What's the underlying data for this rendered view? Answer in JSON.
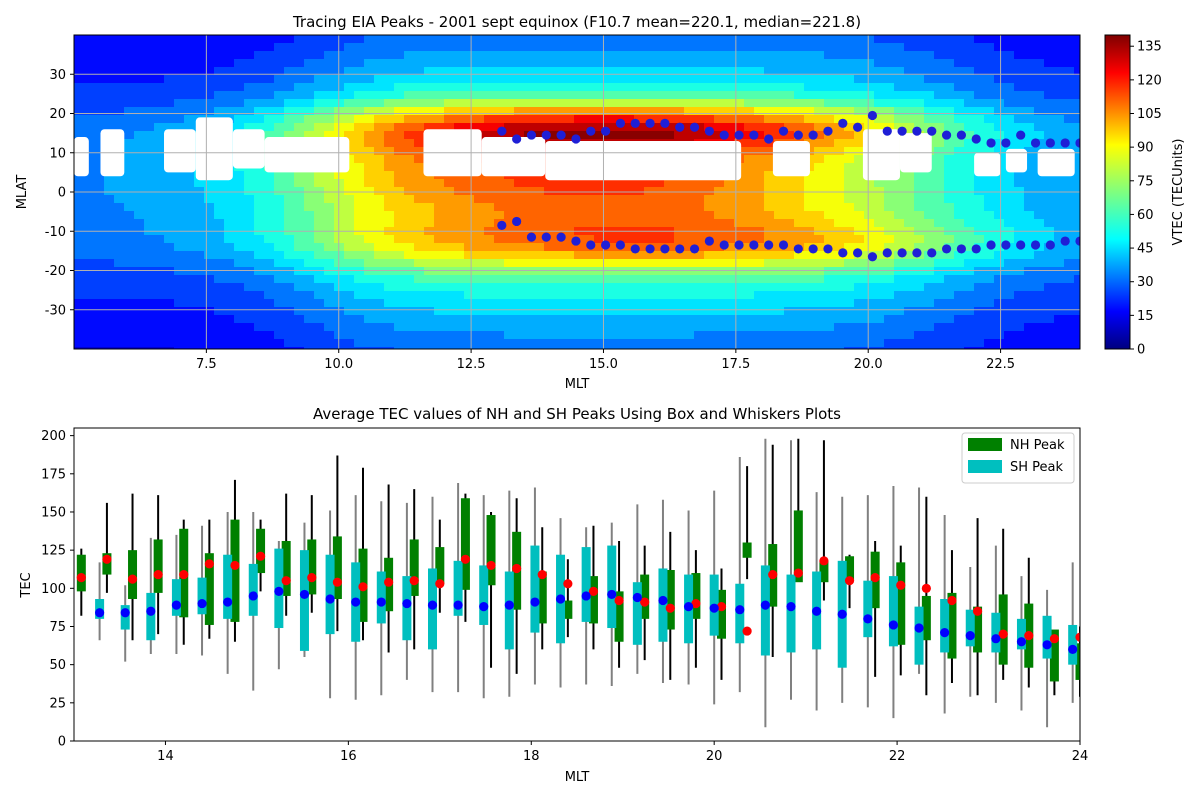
{
  "colors": {
    "nh_box": "#008000",
    "sh_box": "#00bfbf",
    "nh_marker": "#ff0000",
    "sh_marker": "#0000ff",
    "nh_whisker": "#000000",
    "sh_whisker": "#808080",
    "peak_dot": "#1f1fd6",
    "grid": "#b0b0b0"
  },
  "chart_data": [
    {
      "type": "heatmap",
      "title": "Tracing EIA Peaks - 2001 sept equinox (F10.7 mean=220.1, median=221.8)",
      "xlabel": "MLT",
      "ylabel": "MLAT",
      "xlim": [
        5.0,
        24.0
      ],
      "ylim": [
        -40,
        40
      ],
      "xticks": [
        "7.5",
        "10.0",
        "12.5",
        "15.0",
        "17.5",
        "20.0",
        "22.5"
      ],
      "yticks": [
        "30",
        "20",
        "10",
        "0",
        "-10",
        "-20",
        "-30"
      ],
      "grid": true,
      "colormap": "jet",
      "colorbar_label": "VTEC (TECUnits)",
      "colorbar_range": [
        0,
        140
      ],
      "colorbar_ticks": [
        "0",
        "15",
        "30",
        "45",
        "60",
        "75",
        "90",
        "105",
        "120",
        "135"
      ],
      "nh_peaks": {
        "x": [
          13.08,
          13.36,
          13.64,
          13.92,
          14.2,
          14.48,
          14.76,
          15.04,
          15.32,
          15.6,
          15.88,
          16.16,
          16.44,
          16.72,
          17.0,
          17.28,
          17.56,
          17.84,
          18.12,
          18.4,
          18.68,
          18.96,
          19.24,
          19.52,
          19.8,
          20.08,
          20.36,
          20.64,
          20.92,
          21.2,
          21.48,
          21.76,
          22.04,
          22.32,
          22.6,
          22.88,
          23.16,
          23.44,
          23.72,
          24.0
        ],
        "y": [
          15.5,
          13.5,
          14.5,
          14.5,
          14.5,
          13.5,
          15.5,
          15.5,
          17.5,
          17.5,
          17.5,
          17.5,
          16.5,
          16.5,
          15.5,
          14.5,
          14.5,
          14.5,
          13.5,
          15.5,
          14.5,
          14.5,
          15.5,
          17.5,
          16.5,
          19.5,
          15.5,
          15.5,
          15.5,
          15.5,
          14.5,
          14.5,
          13.5,
          12.5,
          12.5,
          14.5,
          12.5,
          12.5,
          12.5,
          12.5
        ]
      },
      "sh_peaks": {
        "x": [
          13.08,
          13.36,
          13.64,
          13.92,
          14.2,
          14.48,
          14.76,
          15.04,
          15.32,
          15.6,
          15.88,
          16.16,
          16.44,
          16.72,
          17.0,
          17.28,
          17.56,
          17.84,
          18.12,
          18.4,
          18.68,
          18.96,
          19.24,
          19.52,
          19.8,
          20.08,
          20.36,
          20.64,
          20.92,
          21.2,
          21.48,
          21.76,
          22.04,
          22.32,
          22.6,
          22.88,
          23.16,
          23.44,
          23.72,
          24.0
        ],
        "y": [
          -8.5,
          -7.5,
          -11.5,
          -11.5,
          -11.5,
          -12.5,
          -13.5,
          -13.5,
          -13.5,
          -14.5,
          -14.5,
          -14.5,
          -14.5,
          -14.5,
          -12.5,
          -13.5,
          -13.5,
          -13.5,
          -13.5,
          -13.5,
          -14.5,
          -14.5,
          -14.5,
          -15.5,
          -15.5,
          -16.5,
          -15.5,
          -15.5,
          -15.5,
          -15.5,
          -14.5,
          -14.5,
          -14.5,
          -13.5,
          -13.5,
          -13.5,
          -13.5,
          -13.5,
          -12.5,
          -12.5
        ]
      }
    },
    {
      "type": "box",
      "title": "Average TEC values of NH and SH Peaks Using Box and Whiskers Plots",
      "xlabel": "MLT",
      "ylabel": "TEC",
      "xlim": [
        13.0,
        24.0
      ],
      "ylim": [
        0,
        205
      ],
      "xticks": [
        "14",
        "16",
        "18",
        "20",
        "22",
        "24"
      ],
      "yticks": [
        "0",
        "25",
        "50",
        "75",
        "100",
        "125",
        "150",
        "175",
        "200"
      ],
      "legend": {
        "position": "top-right",
        "entries": [
          "NH Peak",
          "SH Peak"
        ]
      },
      "series": [
        {
          "name": "NH Peak",
          "x": [
            13.08,
            13.36,
            13.64,
            13.92,
            14.2,
            14.48,
            14.76,
            15.04,
            15.32,
            15.6,
            15.88,
            16.16,
            16.44,
            16.72,
            17.0,
            17.28,
            17.56,
            17.84,
            18.12,
            18.4,
            18.68,
            18.96,
            19.24,
            19.52,
            19.8,
            20.08,
            20.36,
            20.64,
            20.92,
            21.2,
            21.48,
            21.76,
            22.04,
            22.32,
            22.6,
            22.88,
            23.16,
            23.44,
            23.72,
            24.0
          ],
          "q1": [
            98,
            109,
            93,
            97,
            81,
            76,
            78,
            110,
            95,
            96,
            93,
            78,
            85,
            95,
            103,
            99,
            102,
            86,
            77,
            80,
            77,
            65,
            80,
            73,
            80,
            67,
            120,
            88,
            104,
            104,
            105,
            87,
            63,
            66,
            54,
            58,
            50,
            48,
            39,
            40
          ],
          "q3": [
            122,
            123,
            125,
            132,
            139,
            123,
            145,
            139,
            131,
            132,
            134,
            126,
            120,
            132,
            127,
            159,
            148,
            137,
            111,
            92,
            108,
            98,
            109,
            112,
            110,
            99,
            130,
            129,
            151,
            118,
            121,
            124,
            117,
            95,
            97,
            88,
            96,
            90,
            73,
            64
          ],
          "wlow": [
            82,
            97,
            66,
            70,
            63,
            67,
            65,
            98,
            82,
            84,
            72,
            66,
            58,
            60,
            84,
            78,
            48,
            44,
            60,
            68,
            60,
            48,
            53,
            40,
            48,
            40,
            106,
            55,
            112,
            92,
            87,
            42,
            43,
            30,
            38,
            30,
            40,
            35,
            30,
            29
          ],
          "whigh": [
            126,
            156,
            162,
            161,
            145,
            145,
            171,
            145,
            162,
            161,
            187,
            179,
            168,
            165,
            145,
            162,
            150,
            159,
            140,
            119,
            141,
            131,
            128,
            137,
            125,
            113,
            180,
            194,
            198,
            197,
            122,
            131,
            128,
            160,
            125,
            146,
            139,
            120,
            72,
            75
          ],
          "mean": [
            107,
            119,
            106,
            109,
            109,
            116,
            115,
            121,
            105,
            107,
            104,
            101,
            104,
            105,
            103,
            119,
            115,
            113,
            109,
            103,
            98,
            92,
            91,
            87,
            90,
            88,
            72,
            109,
            110,
            118,
            105,
            107,
            102,
            100,
            92,
            85,
            70,
            69,
            67,
            68
          ]
        },
        {
          "name": "SH Peak",
          "x": [
            13.28,
            13.56,
            13.84,
            14.12,
            14.4,
            14.68,
            14.96,
            15.24,
            15.52,
            15.8,
            16.08,
            16.36,
            16.64,
            16.92,
            17.2,
            17.48,
            17.76,
            18.04,
            18.32,
            18.6,
            18.88,
            19.16,
            19.44,
            19.72,
            20.0,
            20.28,
            20.56,
            20.84,
            21.12,
            21.4,
            21.68,
            21.96,
            22.24,
            22.52,
            22.8,
            23.08,
            23.36,
            23.64,
            23.92
          ],
          "q1": [
            80,
            73,
            66,
            82,
            83,
            80,
            82,
            74,
            59,
            70,
            65,
            77,
            66,
            60,
            82,
            76,
            60,
            71,
            64,
            78,
            74,
            63,
            65,
            64,
            69,
            64,
            56,
            58,
            60,
            48,
            68,
            62,
            50,
            58,
            62,
            58,
            60,
            54,
            50
          ],
          "q3": [
            93,
            89,
            97,
            106,
            107,
            122,
            116,
            126,
            125,
            122,
            117,
            111,
            108,
            113,
            118,
            115,
            111,
            128,
            122,
            127,
            128,
            104,
            113,
            109,
            109,
            103,
            115,
            109,
            111,
            118,
            105,
            108,
            88,
            93,
            86,
            84,
            80,
            82,
            76
          ],
          "wlow": [
            66,
            52,
            57,
            57,
            56,
            44,
            33,
            47,
            55,
            28,
            27,
            30,
            40,
            32,
            32,
            28,
            29,
            37,
            35,
            37,
            36,
            44,
            38,
            37,
            24,
            32,
            9,
            27,
            20,
            25,
            22,
            15,
            44,
            18,
            29,
            25,
            20,
            9,
            25
          ],
          "whigh": [
            117,
            102,
            133,
            135,
            141,
            150,
            150,
            131,
            143,
            151,
            161,
            157,
            156,
            160,
            169,
            161,
            164,
            166,
            146,
            140,
            143,
            155,
            158,
            151,
            164,
            186,
            198,
            197,
            163,
            160,
            161,
            167,
            166,
            148,
            114,
            128,
            108,
            99,
            117
          ],
          "mean": [
            84,
            84,
            85,
            89,
            90,
            91,
            95,
            98,
            96,
            93,
            91,
            91,
            90,
            89,
            89,
            88,
            89,
            91,
            93,
            95,
            96,
            94,
            92,
            88,
            87,
            86,
            89,
            88,
            85,
            83,
            80,
            76,
            74,
            71,
            69,
            67,
            65,
            63,
            60
          ]
        }
      ]
    }
  ]
}
